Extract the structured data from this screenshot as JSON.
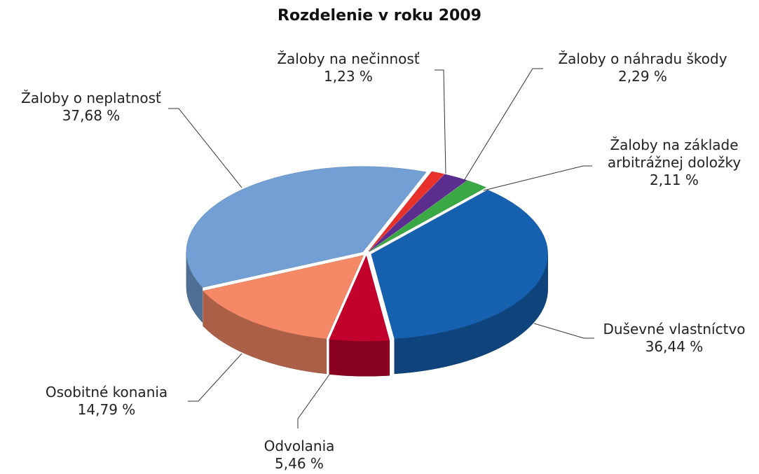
{
  "chart_data": {
    "type": "pie",
    "title": "Rozdelenie v roku 2009",
    "categories": [
      "Žaloby na nečinnosť",
      "Žaloby o náhradu škody",
      "Žaloby na základe arbitrážnej doložky",
      "Duševné vlastníctvo",
      "Odvolania",
      "Osobitné konania",
      "Žaloby o neplatnosť"
    ],
    "values": [
      1.23,
      2.29,
      2.11,
      36.44,
      5.46,
      14.79,
      37.68
    ],
    "value_labels": [
      "1,23 %",
      "2,29 %",
      "2,11 %",
      "36,44 %",
      "5,46 %",
      "14,79 %",
      "37,68 %"
    ],
    "colors": [
      "#e8312a",
      "#5b2d8f",
      "#3aa845",
      "#1660b0",
      "#c2002c",
      "#f58866",
      "#729fd4"
    ]
  }
}
